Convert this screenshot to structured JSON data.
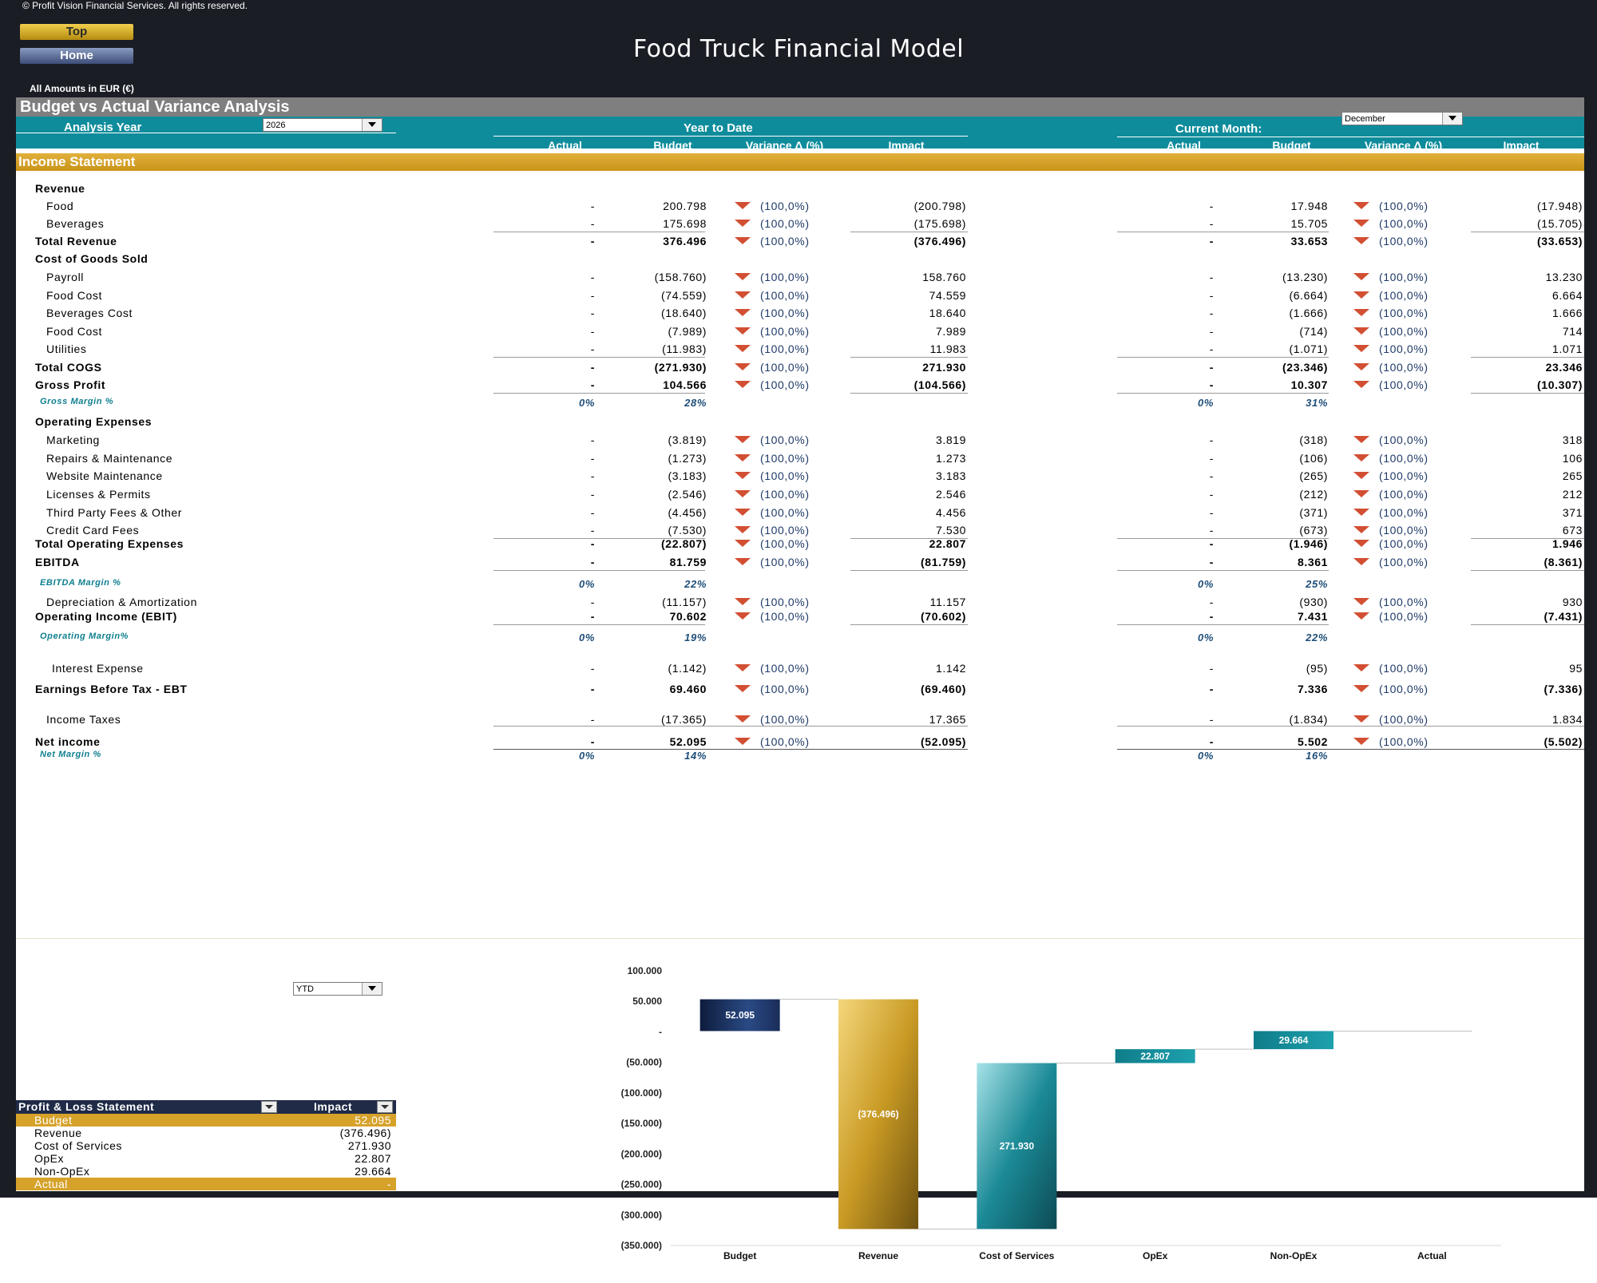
{
  "copyright": "© Profit Vision Financial Services. All rights reserved.",
  "nav": {
    "top_label": "Top",
    "home_label": "Home"
  },
  "app_title": "Food Truck Financial Model",
  "amounts_note": "All Amounts in  EUR (€)",
  "sheet_title": "Budget vs Actual Variance Analysis",
  "analysis_year_label": "Analysis Year",
  "analysis_year_value": "2026",
  "ytd_header": "Year to Date",
  "current_month_label": "Current Month:",
  "current_month_value": "December",
  "columns": {
    "actual": "Actual",
    "budget": "Budget",
    "variance": "Variance Δ  (%)",
    "impact": "Impact"
  },
  "section_title": "Income Statement",
  "rows": [
    {
      "label": "Revenue",
      "type": "header"
    },
    {
      "label": "Food",
      "indent": 1,
      "ytd": [
        "-",
        "200.798",
        "(100,0%)",
        "(200.798)"
      ],
      "cm": [
        "-",
        "17.948",
        "(100,0%)",
        "(17.948)"
      ]
    },
    {
      "label": "Beverages",
      "indent": 1,
      "ytd": [
        "-",
        "175.698",
        "(100,0%)",
        "(175.698)"
      ],
      "cm": [
        "-",
        "15.705",
        "(100,0%)",
        "(15.705)"
      ],
      "underline": true
    },
    {
      "label": "Total Revenue",
      "type": "total",
      "ytd": [
        "-",
        "376.496",
        "(100,0%)",
        "(376.496)"
      ],
      "cm": [
        "-",
        "33.653",
        "(100,0%)",
        "(33.653)"
      ]
    },
    {
      "label": "Cost of Goods Sold",
      "type": "header"
    },
    {
      "label": "Payroll",
      "indent": 1,
      "ytd": [
        "-",
        "(158.760)",
        "(100,0%)",
        "158.760"
      ],
      "cm": [
        "-",
        "(13.230)",
        "(100,0%)",
        "13.230"
      ]
    },
    {
      "label": "Food Cost",
      "indent": 1,
      "ytd": [
        "-",
        "(74.559)",
        "(100,0%)",
        "74.559"
      ],
      "cm": [
        "-",
        "(6.664)",
        "(100,0%)",
        "6.664"
      ]
    },
    {
      "label": "Beverages Cost",
      "indent": 1,
      "ytd": [
        "-",
        "(18.640)",
        "(100,0%)",
        "18.640"
      ],
      "cm": [
        "-",
        "(1.666)",
        "(100,0%)",
        "1.666"
      ]
    },
    {
      "label": "Food Cost",
      "indent": 1,
      "ytd": [
        "-",
        "(7.989)",
        "(100,0%)",
        "7.989"
      ],
      "cm": [
        "-",
        "(714)",
        "(100,0%)",
        "714"
      ]
    },
    {
      "label": "Utilities",
      "indent": 1,
      "ytd": [
        "-",
        "(11.983)",
        "(100,0%)",
        "11.983"
      ],
      "cm": [
        "-",
        "(1.071)",
        "(100,0%)",
        "1.071"
      ],
      "underline": true
    },
    {
      "label": "Total COGS",
      "type": "total",
      "ytd": [
        "-",
        "(271.930)",
        "(100,0%)",
        "271.930"
      ],
      "cm": [
        "-",
        "(23.346)",
        "(100,0%)",
        "23.346"
      ]
    },
    {
      "label": "Gross Profit",
      "type": "total",
      "ytd": [
        "-",
        "104.566",
        "(100,0%)",
        "(104.566)"
      ],
      "cm": [
        "-",
        "10.307",
        "(100,0%)",
        "(10.307)"
      ],
      "underline": true
    },
    {
      "label": "Gross Margin %",
      "type": "pct",
      "ytd": [
        "0%",
        "28%"
      ],
      "cm": [
        "0%",
        "31%"
      ]
    },
    {
      "label": "Operating Expenses",
      "type": "header"
    },
    {
      "label": "Marketing",
      "indent": 1,
      "ytd": [
        "-",
        "(3.819)",
        "(100,0%)",
        "3.819"
      ],
      "cm": [
        "-",
        "(318)",
        "(100,0%)",
        "318"
      ]
    },
    {
      "label": "Repairs & Maintenance",
      "indent": 1,
      "ytd": [
        "-",
        "(1.273)",
        "(100,0%)",
        "1.273"
      ],
      "cm": [
        "-",
        "(106)",
        "(100,0%)",
        "106"
      ]
    },
    {
      "label": "Website Maintenance",
      "indent": 1,
      "ytd": [
        "-",
        "(3.183)",
        "(100,0%)",
        "3.183"
      ],
      "cm": [
        "-",
        "(265)",
        "(100,0%)",
        "265"
      ]
    },
    {
      "label": "Licenses & Permits",
      "indent": 1,
      "ytd": [
        "-",
        "(2.546)",
        "(100,0%)",
        "2.546"
      ],
      "cm": [
        "-",
        "(212)",
        "(100,0%)",
        "212"
      ]
    },
    {
      "label": "Third Party Fees & Other",
      "indent": 1,
      "ytd": [
        "-",
        "(4.456)",
        "(100,0%)",
        "4.456"
      ],
      "cm": [
        "-",
        "(371)",
        "(100,0%)",
        "371"
      ]
    },
    {
      "label": "Credit Card Fees",
      "indent": 1,
      "ytd": [
        "-",
        "(7.530)",
        "(100,0%)",
        "7.530"
      ],
      "cm": [
        "-",
        "(673)",
        "(100,0%)",
        "673"
      ],
      "underline": true
    },
    {
      "label": "Total Operating Expenses",
      "type": "total",
      "ytd": [
        "-",
        "(22.807)",
        "(100,0%)",
        "22.807"
      ],
      "cm": [
        "-",
        "(1.946)",
        "(100,0%)",
        "1.946"
      ]
    },
    {
      "label": "EBITDA",
      "type": "total",
      "ytd": [
        "-",
        "81.759",
        "(100,0%)",
        "(81.759)"
      ],
      "cm": [
        "-",
        "8.361",
        "(100,0%)",
        "(8.361)"
      ],
      "underline": true
    },
    {
      "label": "EBITDA Margin %",
      "type": "pct",
      "ytd": [
        "0%",
        "22%"
      ],
      "cm": [
        "0%",
        "25%"
      ]
    },
    {
      "label": "Depreciation & Amortization",
      "indent": 1,
      "ytd": [
        "-",
        "(11.157)",
        "(100,0%)",
        "11.157"
      ],
      "cm": [
        "-",
        "(930)",
        "(100,0%)",
        "930"
      ]
    },
    {
      "label": "Operating Income (EBIT)",
      "type": "total",
      "ytd": [
        "-",
        "70.602",
        "(100,0%)",
        "(70.602)"
      ],
      "cm": [
        "-",
        "7.431",
        "(100,0%)",
        "(7.431)"
      ],
      "underline": true
    },
    {
      "label": "Operating Margin%",
      "type": "pct",
      "ytd": [
        "0%",
        "19%"
      ],
      "cm": [
        "0%",
        "22%"
      ]
    },
    {
      "label": "Interest Expense",
      "indent": 2,
      "ytd": [
        "-",
        "(1.142)",
        "(100,0%)",
        "1.142"
      ],
      "cm": [
        "-",
        "(95)",
        "(100,0%)",
        "95"
      ]
    },
    {
      "label": "Earnings Before Tax - EBT",
      "type": "total",
      "ytd": [
        "-",
        "69.460",
        "(100,0%)",
        "(69.460)"
      ],
      "cm": [
        "-",
        "7.336",
        "(100,0%)",
        "(7.336)"
      ]
    },
    {
      "label": "Income Taxes",
      "indent": 1,
      "ytd": [
        "-",
        "(17.365)",
        "(100,0%)",
        "17.365"
      ],
      "cm": [
        "-",
        "(1.834)",
        "(100,0%)",
        "1.834"
      ]
    },
    {
      "label": "Net income",
      "type": "total",
      "ytd": [
        "-",
        "52.095",
        "(100,0%)",
        "(52.095)"
      ],
      "cm": [
        "-",
        "5.502",
        "(100,0%)",
        "(5.502)"
      ],
      "overline": true
    },
    {
      "label": "Net Margin %",
      "type": "pct",
      "ytd": [
        "0%",
        "14%"
      ],
      "cm": [
        "0%",
        "16%"
      ]
    }
  ],
  "pnl_selector_value": "YTD",
  "pnl_table": {
    "header": [
      "Profit & Loss Statement",
      "Impact"
    ],
    "rows": [
      {
        "label": "Budget",
        "value": "52.095",
        "highlight": true
      },
      {
        "label": "Revenue",
        "value": "(376.496)"
      },
      {
        "label": "Cost of Services",
        "value": "271.930"
      },
      {
        "label": "OpEx",
        "value": "22.807"
      },
      {
        "label": "Non-OpEx",
        "value": "29.664"
      },
      {
        "label": "Actual",
        "value": "-",
        "highlight": true
      }
    ]
  },
  "colors": {
    "navy_bg": "#1a1d24",
    "teal": "#0f8c9c",
    "gold": "#d4a22a",
    "down_arrow": "#d24f33",
    "budget_bar": "#1f3864",
    "revenue_bar": "#c99a24",
    "cos_bar": "#1b8a96"
  },
  "chart_data": {
    "type": "bar",
    "subtype": "waterfall",
    "categories": [
      "Budget",
      "Revenue",
      "Cost of Services",
      "OpEx",
      "Non-OpEx",
      "Actual"
    ],
    "values": [
      52095,
      -376496,
      271930,
      22807,
      29664,
      0
    ],
    "data_labels": [
      "52.095",
      "(376.496)",
      "271.930",
      "22.807",
      "29.664",
      ""
    ],
    "ylim": [
      -350000,
      100000
    ],
    "yticks": [
      "100.000",
      "50.000",
      "-",
      "(50.000)",
      "(100.000)",
      "(150.000)",
      "(200.000)",
      "(250.000)",
      "(300.000)",
      "(350.000)"
    ]
  }
}
